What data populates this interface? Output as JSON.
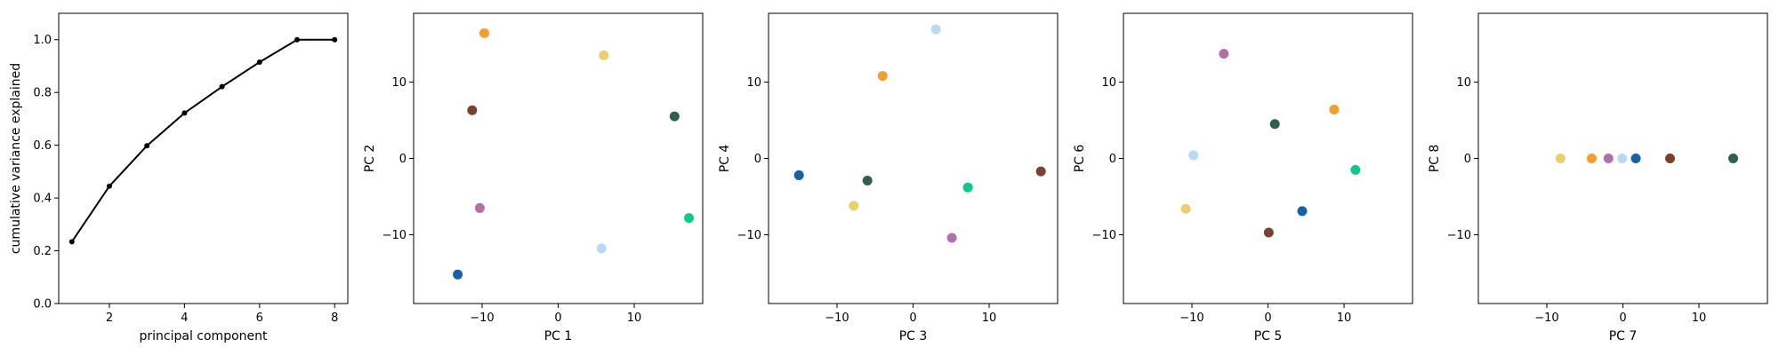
{
  "chart_data": [
    {
      "type": "line",
      "xlabel": "principal component",
      "ylabel": "cumulative variance explained",
      "xlim": [
        0.65,
        8.35
      ],
      "ylim": [
        0.0,
        1.1
      ],
      "xticks": [
        2,
        4,
        6,
        8
      ],
      "yticks": [
        0.0,
        0.2,
        0.4,
        0.6,
        0.8,
        1.0
      ],
      "ytick_labels": [
        "0.0",
        "0.2",
        "0.4",
        "0.6",
        "0.8",
        "1.0"
      ],
      "grid": false,
      "marker": "dot",
      "line_color": "#000000",
      "x": [
        1,
        2,
        3,
        4,
        5,
        6,
        7,
        8
      ],
      "y": [
        0.234,
        0.445,
        0.598,
        0.722,
        0.822,
        0.915,
        1.0,
        1.0
      ]
    },
    {
      "type": "scatter",
      "xlabel": "PC 1",
      "ylabel": "PC 2",
      "xlim": [
        -19,
        19
      ],
      "ylim": [
        -19,
        19
      ],
      "xticks": [
        -10,
        0,
        10
      ],
      "yticks": [
        -10,
        0,
        10
      ],
      "grid": false,
      "points": [
        {
          "x": -9.7,
          "y": 16.4,
          "color": "#f0a030"
        },
        {
          "x": 6.0,
          "y": 13.5,
          "color": "#e8d070"
        },
        {
          "x": -11.3,
          "y": 6.3,
          "color": "#7a4030"
        },
        {
          "x": 15.3,
          "y": 5.5,
          "color": "#2f5f4f"
        },
        {
          "x": -10.3,
          "y": -6.5,
          "color": "#b070a8"
        },
        {
          "x": 17.2,
          "y": -7.8,
          "color": "#10c888"
        },
        {
          "x": 5.7,
          "y": -11.8,
          "color": "#b8d8f8"
        },
        {
          "x": -13.2,
          "y": -15.2,
          "color": "#1860a8"
        }
      ]
    },
    {
      "type": "scatter",
      "xlabel": "PC 3",
      "ylabel": "PC 4",
      "xlim": [
        -19,
        19
      ],
      "ylim": [
        -19,
        19
      ],
      "xticks": [
        -10,
        0,
        10
      ],
      "yticks": [
        -10,
        0,
        10
      ],
      "grid": false,
      "points": [
        {
          "x": 3.0,
          "y": 16.9,
          "color": "#b8d8f8"
        },
        {
          "x": -4.0,
          "y": 10.8,
          "color": "#f0a030"
        },
        {
          "x": -15.0,
          "y": -2.2,
          "color": "#1860a8"
        },
        {
          "x": -6.0,
          "y": -2.9,
          "color": "#2f5f4f"
        },
        {
          "x": 7.2,
          "y": -3.8,
          "color": "#10c888"
        },
        {
          "x": 16.8,
          "y": -1.7,
          "color": "#7a4030"
        },
        {
          "x": -7.8,
          "y": -6.2,
          "color": "#e8d070"
        },
        {
          "x": 5.1,
          "y": -10.4,
          "color": "#b070a8"
        }
      ]
    },
    {
      "type": "scatter",
      "xlabel": "PC 5",
      "ylabel": "PC 6",
      "xlim": [
        -19,
        19
      ],
      "ylim": [
        -19,
        19
      ],
      "xticks": [
        -10,
        0,
        10
      ],
      "yticks": [
        -10,
        0,
        10
      ],
      "grid": false,
      "points": [
        {
          "x": -5.8,
          "y": 13.7,
          "color": "#b070a8"
        },
        {
          "x": 8.7,
          "y": 6.4,
          "color": "#f0a030"
        },
        {
          "x": 0.9,
          "y": 4.5,
          "color": "#2f5f4f"
        },
        {
          "x": -9.8,
          "y": 0.4,
          "color": "#b8d8f8"
        },
        {
          "x": 11.5,
          "y": -1.5,
          "color": "#10c888"
        },
        {
          "x": -10.8,
          "y": -6.6,
          "color": "#e8d070"
        },
        {
          "x": 4.5,
          "y": -6.9,
          "color": "#1860a8"
        },
        {
          "x": 0.1,
          "y": -9.7,
          "color": "#7a4030"
        }
      ]
    },
    {
      "type": "scatter",
      "xlabel": "PC 7",
      "ylabel": "PC 8",
      "xlim": [
        -19,
        19
      ],
      "ylim": [
        -19,
        19
      ],
      "xticks": [
        -10,
        0,
        10
      ],
      "yticks": [
        -10,
        0,
        10
      ],
      "grid": false,
      "points": [
        {
          "x": -8.2,
          "y": 0.0,
          "color": "#e8d070"
        },
        {
          "x": -4.1,
          "y": 0.0,
          "color": "#f0a030"
        },
        {
          "x": -1.9,
          "y": 0.0,
          "color": "#b070a8"
        },
        {
          "x": -0.1,
          "y": 0.0,
          "color": "#b8d8f8"
        },
        {
          "x": 1.7,
          "y": 0.0,
          "color": "#1860a8"
        },
        {
          "x": 6.2,
          "y": 0.0,
          "color": "#7a4030"
        },
        {
          "x": 14.5,
          "y": 0.0,
          "color": "#2f5f4f"
        }
      ]
    }
  ]
}
